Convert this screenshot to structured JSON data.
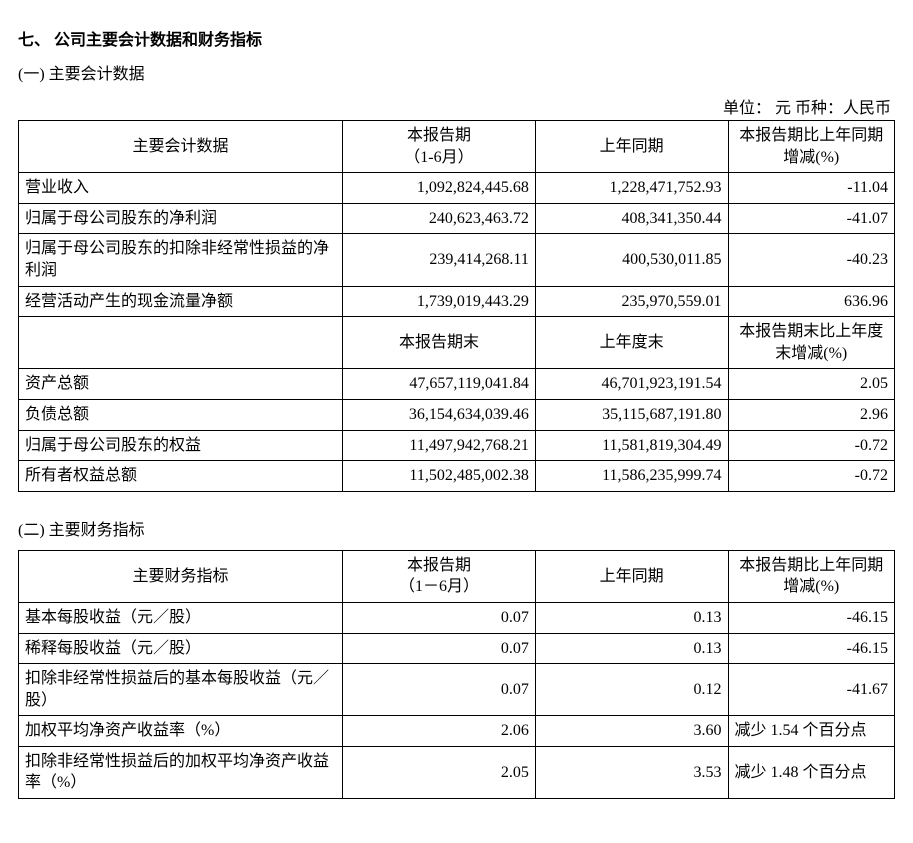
{
  "headings": {
    "section": "七、 公司主要会计数据和财务指标",
    "sub1": "(一) 主要会计数据",
    "sub2": "(二) 主要财务指标"
  },
  "unit_line": "单位：  元    币种：人民币",
  "table1": {
    "head1": {
      "c0": "主要会计数据",
      "c1": "本报告期\n（1-6月）",
      "c2": "上年同期",
      "c3": "本报告期比上年同期增减(%)"
    },
    "rows1": [
      {
        "label": "营业收入",
        "v1": "1,092,824,445.68",
        "v2": "1,228,471,752.93",
        "v3": "-11.04"
      },
      {
        "label": "归属于母公司股东的净利润",
        "v1": "240,623,463.72",
        "v2": "408,341,350.44",
        "v3": "-41.07"
      },
      {
        "label": "归属于母公司股东的扣除非经常性损益的净利润",
        "v1": "239,414,268.11",
        "v2": "400,530,011.85",
        "v3": "-40.23"
      },
      {
        "label": "经营活动产生的现金流量净额",
        "v1": "1,739,019,443.29",
        "v2": "235,970,559.01",
        "v3": "636.96"
      }
    ],
    "head2": {
      "c0": "",
      "c1": "本报告期末",
      "c2": "上年度末",
      "c3": "本报告期末比上年度末增减(%)"
    },
    "rows2": [
      {
        "label": "资产总额",
        "v1": "47,657,119,041.84",
        "v2": "46,701,923,191.54",
        "v3": "2.05"
      },
      {
        "label": "负债总额",
        "v1": "36,154,634,039.46",
        "v2": "35,115,687,191.80",
        "v3": "2.96"
      },
      {
        "label": "归属于母公司股东的权益",
        "v1": "11,497,942,768.21",
        "v2": "11,581,819,304.49",
        "v3": "-0.72"
      },
      {
        "label": "所有者权益总额",
        "v1": "11,502,485,002.38",
        "v2": "11,586,235,999.74",
        "v3": "-0.72"
      }
    ]
  },
  "table2": {
    "head": {
      "c0": "主要财务指标",
      "c1": "本报告期\n（1－6月）",
      "c2": "上年同期",
      "c3": "本报告期比上年同期增减(%)"
    },
    "rows": [
      {
        "label": "基本每股收益（元／股）",
        "v1": "0.07",
        "v2": "0.13",
        "v3": "-46.15",
        "v3class": "num"
      },
      {
        "label": "稀释每股收益（元／股）",
        "v1": "0.07",
        "v2": "0.13",
        "v3": "-46.15",
        "v3class": "num"
      },
      {
        "label": "扣除非经常性损益后的基本每股收益（元／股）",
        "v1": "0.07",
        "v2": "0.12",
        "v3": "-41.67",
        "v3class": "num"
      },
      {
        "label": "加权平均净资产收益率（%）",
        "v1": "2.06",
        "v2": "3.60",
        "v3": "减少 1.54 个百分点",
        "v3class": "txt"
      },
      {
        "label": "扣除非经常性损益后的加权平均净资产收益率（%）",
        "v1": "2.05",
        "v2": "3.53",
        "v3": "减少 1.48 个百分点",
        "v3class": "txt"
      }
    ]
  }
}
